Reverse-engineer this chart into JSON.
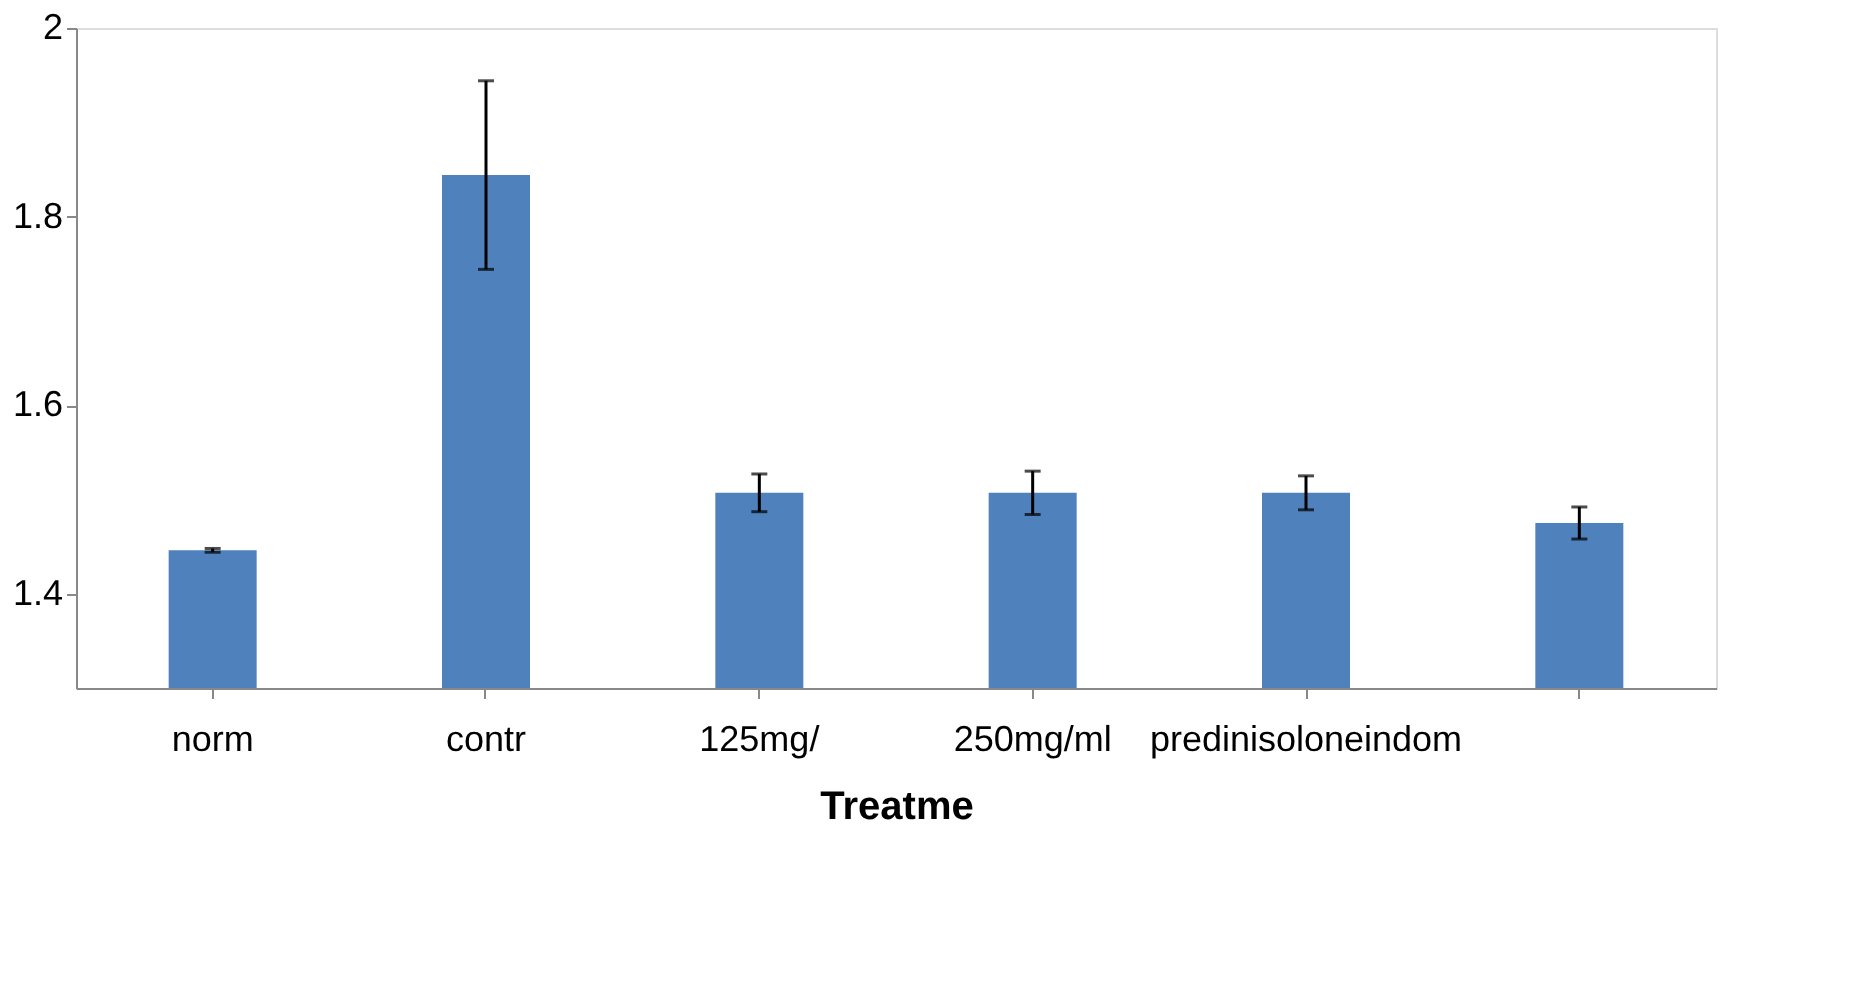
{
  "chart_data": {
    "type": "bar",
    "xlabel": "Treatme",
    "categories": [
      "norm",
      "contr",
      "125mg/",
      "250mg/ml",
      "predinisoloneindom",
      null
    ],
    "series": [
      {
        "color": "#4f81bd",
        "values": [
          1.446,
          1.844,
          1.507,
          1.507,
          1.507,
          1.475
        ],
        "errors": [
          0.002,
          0.1,
          0.02,
          0.023,
          0.018,
          0.017
        ]
      }
    ],
    "ylim": [
      1.3,
      2
    ],
    "yticks": [
      1.4,
      1.6,
      1.8,
      2
    ],
    "grid": false
  }
}
